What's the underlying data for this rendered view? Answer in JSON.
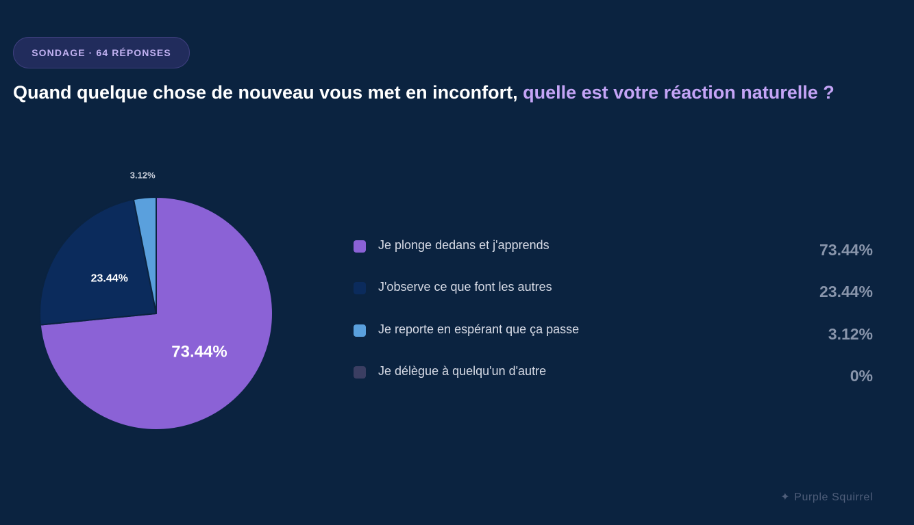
{
  "header": {
    "badge": "SONDAGE · 64 RÉPONSES",
    "title_part1": "Quand quelque chose de nouveau vous met en inconfort,",
    "title_part2": "quelle est votre réaction naturelle ?"
  },
  "chart_data": {
    "type": "pie",
    "categories": [
      "Je plonge dedans et j'apprends",
      "J'observe ce que font les autres",
      "Je reporte en espérant que ça passe",
      "Je délègue à quelqu'un d'autre"
    ],
    "values": [
      73.44,
      23.44,
      3.12,
      0
    ],
    "value_labels": [
      "73.44%",
      "23.44%",
      "3.12%",
      "0%"
    ],
    "colors": [
      "#8b62d6",
      "#0b2b5c",
      "#5aa0dd",
      "#3b3e62"
    ],
    "legend_position": "right"
  },
  "footer": {
    "star": "✦",
    "brand": "Purple Squirrel"
  }
}
